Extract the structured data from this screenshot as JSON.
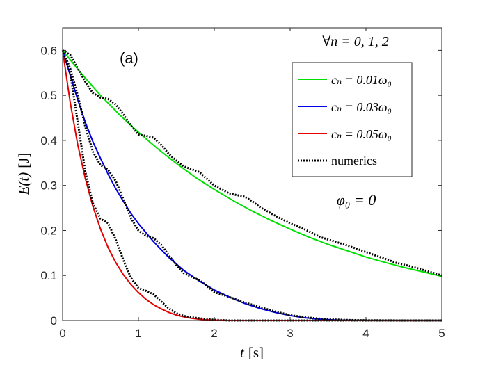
{
  "chart_data": {
    "type": "line",
    "panel_label": "(a)",
    "xlabel": {
      "var": "t",
      "unit": "[s]"
    },
    "ylabel": {
      "var": "E(t)",
      "unit": "[J]"
    },
    "xlim": [
      0,
      5
    ],
    "ylim": [
      0,
      0.65
    ],
    "xticks": [
      0,
      1,
      2,
      3,
      4,
      5
    ],
    "xtick_labels": [
      "0",
      "1",
      "2",
      "3",
      "4",
      "5"
    ],
    "yticks": [
      0,
      0.1,
      0.2,
      0.3,
      0.4,
      0.5,
      0.6
    ],
    "ytick_labels": [
      "0",
      "0.1",
      "0.2",
      "0.3",
      "0.4",
      "0.5",
      "0.6"
    ],
    "annotations": [
      {
        "text": "∀n = 0, 1, 2"
      },
      {
        "text": "φ₀ = 0"
      }
    ],
    "legend": {
      "placement": "top-right",
      "entries": [
        {
          "label": "cₙ = 0.01ω₀",
          "color": "#00e000",
          "style": "solid"
        },
        {
          "label": "cₙ = 0.03ω₀",
          "color": "#0000e6",
          "style": "solid"
        },
        {
          "label": "cₙ = 0.05ω₀",
          "color": "#e60000",
          "style": "solid"
        },
        {
          "label": "numerics",
          "color": "#000000",
          "style": "dotted"
        }
      ]
    },
    "series": [
      {
        "name": "cₙ = 0.01ω₀",
        "color": "#00e000",
        "x": [
          0,
          0.25,
          0.5,
          0.75,
          1.0,
          1.25,
          1.5,
          1.75,
          2.0,
          2.25,
          2.5,
          2.75,
          3.0,
          3.25,
          3.5,
          3.75,
          4.0,
          4.25,
          4.5,
          4.75,
          5.0
        ],
        "y": [
          0.6,
          0.548,
          0.5,
          0.457,
          0.418,
          0.382,
          0.349,
          0.318,
          0.291,
          0.266,
          0.243,
          0.222,
          0.203,
          0.185,
          0.169,
          0.155,
          0.141,
          0.129,
          0.118,
          0.108,
          0.098
        ]
      },
      {
        "name": "cₙ = 0.03ω₀",
        "color": "#0000e6",
        "x": [
          0,
          0.1,
          0.2,
          0.3,
          0.4,
          0.5,
          0.6,
          0.7,
          0.8,
          0.9,
          1.0,
          1.2,
          1.4,
          1.6,
          1.8,
          2.0,
          2.2,
          2.4,
          2.6,
          2.8,
          3.0,
          3.2,
          3.4,
          3.6,
          3.8,
          4.0,
          4.5,
          5.0
        ],
        "y": [
          0.6,
          0.545,
          0.49,
          0.44,
          0.397,
          0.36,
          0.325,
          0.293,
          0.265,
          0.238,
          0.215,
          0.175,
          0.14,
          0.111,
          0.088,
          0.068,
          0.052,
          0.038,
          0.027,
          0.018,
          0.011,
          0.006,
          0.003,
          0.001,
          0.0005,
          0,
          0,
          0
        ]
      },
      {
        "name": "cₙ = 0.05ω₀",
        "color": "#e60000",
        "x": [
          0,
          0.1,
          0.2,
          0.3,
          0.4,
          0.5,
          0.6,
          0.7,
          0.8,
          0.9,
          1.0,
          1.1,
          1.2,
          1.3,
          1.4,
          1.5,
          1.6,
          1.7,
          1.8,
          1.9,
          2.0,
          2.2,
          2.5,
          3.0,
          4.0,
          5.0
        ],
        "y": [
          0.6,
          0.485,
          0.39,
          0.315,
          0.253,
          0.203,
          0.162,
          0.129,
          0.102,
          0.08,
          0.062,
          0.047,
          0.035,
          0.026,
          0.018,
          0.012,
          0.008,
          0.005,
          0.003,
          0.0015,
          0.0007,
          0,
          0,
          0,
          0,
          0
        ]
      },
      {
        "name": "numerics (0.01)",
        "color": "#000000",
        "dotted": true,
        "x": [
          0,
          0.1,
          0.2,
          0.3,
          0.4,
          0.5,
          0.6,
          0.7,
          0.8,
          0.9,
          1.0,
          1.1,
          1.2,
          1.3,
          1.4,
          1.5,
          1.6,
          1.7,
          1.8,
          1.9,
          2.0,
          2.2,
          2.4,
          2.5,
          2.6,
          2.8,
          3.0,
          3.2,
          3.4,
          3.6,
          3.8,
          4.0,
          4.2,
          4.4,
          4.6,
          4.8,
          5.0
        ],
        "y": [
          0.6,
          0.59,
          0.56,
          0.53,
          0.505,
          0.495,
          0.492,
          0.48,
          0.458,
          0.433,
          0.413,
          0.41,
          0.406,
          0.39,
          0.37,
          0.355,
          0.342,
          0.336,
          0.33,
          0.315,
          0.3,
          0.282,
          0.275,
          0.265,
          0.252,
          0.233,
          0.216,
          0.202,
          0.185,
          0.175,
          0.164,
          0.152,
          0.14,
          0.128,
          0.12,
          0.11,
          0.1
        ]
      },
      {
        "name": "numerics (0.03)",
        "color": "#000000",
        "dotted": true,
        "x": [
          0,
          0.1,
          0.2,
          0.3,
          0.4,
          0.5,
          0.6,
          0.7,
          0.8,
          0.9,
          1.0,
          1.1,
          1.2,
          1.3,
          1.4,
          1.5,
          1.6,
          1.7,
          1.8,
          1.9,
          2.0,
          2.2,
          2.4,
          2.6,
          2.8,
          3.0,
          3.2,
          3.4,
          3.6,
          3.8,
          4.0,
          4.5,
          5.0
        ],
        "y": [
          0.6,
          0.56,
          0.5,
          0.43,
          0.375,
          0.345,
          0.335,
          0.31,
          0.27,
          0.228,
          0.2,
          0.188,
          0.183,
          0.168,
          0.145,
          0.123,
          0.105,
          0.097,
          0.09,
          0.077,
          0.063,
          0.052,
          0.04,
          0.03,
          0.02,
          0.012,
          0.007,
          0.004,
          0.002,
          0.001,
          0.0005,
          0,
          0
        ]
      },
      {
        "name": "numerics (0.05)",
        "color": "#000000",
        "dotted": true,
        "x": [
          0,
          0.1,
          0.2,
          0.3,
          0.4,
          0.5,
          0.6,
          0.7,
          0.8,
          0.9,
          1.0,
          1.1,
          1.2,
          1.3,
          1.4,
          1.5,
          1.6,
          1.7,
          1.8,
          1.9,
          2.0,
          2.2,
          2.5,
          3.0,
          4.0,
          5.0
        ],
        "y": [
          0.6,
          0.55,
          0.44,
          0.33,
          0.26,
          0.226,
          0.216,
          0.18,
          0.135,
          0.095,
          0.072,
          0.066,
          0.058,
          0.042,
          0.027,
          0.016,
          0.01,
          0.007,
          0.005,
          0.003,
          0.0015,
          0,
          0,
          0,
          0,
          0
        ]
      }
    ]
  }
}
